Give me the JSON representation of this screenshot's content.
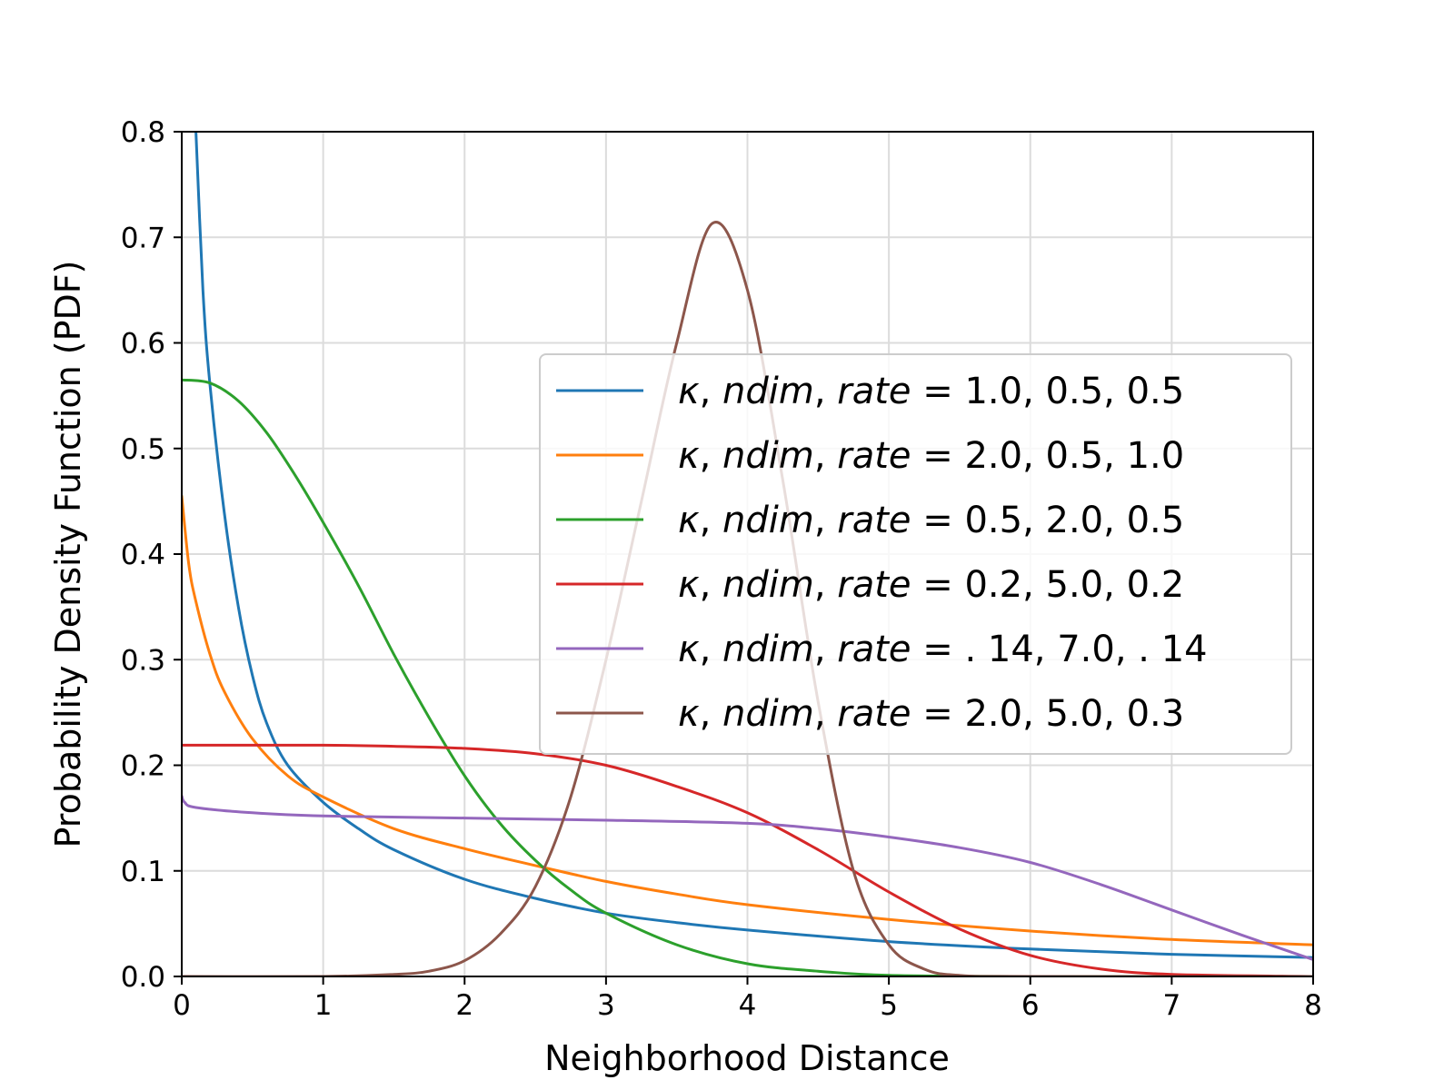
{
  "chart_data": {
    "type": "line",
    "title": "",
    "xlabel": "Neighborhood Distance",
    "ylabel": "Probability Density Function (PDF)",
    "xlim": [
      0,
      8
    ],
    "ylim": [
      0,
      0.8
    ],
    "x_ticks": [
      0,
      1,
      2,
      3,
      4,
      5,
      6,
      7,
      8
    ],
    "x_tick_labels": [
      "0",
      "1",
      "2",
      "3",
      "4",
      "5",
      "6",
      "7",
      "8"
    ],
    "y_ticks": [
      0.0,
      0.1,
      0.2,
      0.3,
      0.4,
      0.5,
      0.6,
      0.7,
      0.8
    ],
    "y_tick_labels": [
      "0.0",
      "0.1",
      "0.2",
      "0.3",
      "0.4",
      "0.5",
      "0.6",
      "0.7",
      "0.8"
    ],
    "grid": true,
    "legend_position": "center-right",
    "legend_prefix": [
      "κ",
      ", ",
      "ndim",
      ", ",
      "rate",
      " ="
    ],
    "series": [
      {
        "name": "κ, ndim, rate = 1.0, 0.5, 0.5",
        "params": "1.0, 0.5, 0.5",
        "color": "#1f77b4",
        "points": [
          [
            0.1,
            0.8
          ],
          [
            0.15,
            0.65
          ],
          [
            0.2,
            0.56
          ],
          [
            0.3,
            0.44
          ],
          [
            0.4,
            0.35
          ],
          [
            0.5,
            0.285
          ],
          [
            0.6,
            0.24
          ],
          [
            0.75,
            0.2
          ],
          [
            1.0,
            0.165
          ],
          [
            1.25,
            0.14
          ],
          [
            1.5,
            0.12
          ],
          [
            2.0,
            0.092
          ],
          [
            2.5,
            0.074
          ],
          [
            3.0,
            0.06
          ],
          [
            3.5,
            0.051
          ],
          [
            4.0,
            0.044
          ],
          [
            5.0,
            0.033
          ],
          [
            6.0,
            0.026
          ],
          [
            7.0,
            0.021
          ],
          [
            8.0,
            0.018
          ]
        ]
      },
      {
        "name": "κ, ndim, rate = 2.0, 0.5, 1.0",
        "params": "2.0, 0.5, 1.0",
        "color": "#ff7f0e",
        "points": [
          [
            0.0,
            0.455
          ],
          [
            0.05,
            0.39
          ],
          [
            0.1,
            0.355
          ],
          [
            0.2,
            0.305
          ],
          [
            0.3,
            0.27
          ],
          [
            0.5,
            0.225
          ],
          [
            0.75,
            0.19
          ],
          [
            1.0,
            0.17
          ],
          [
            1.5,
            0.14
          ],
          [
            2.0,
            0.121
          ],
          [
            2.5,
            0.105
          ],
          [
            3.0,
            0.09
          ],
          [
            3.5,
            0.078
          ],
          [
            4.0,
            0.068
          ],
          [
            5.0,
            0.054
          ],
          [
            6.0,
            0.043
          ],
          [
            7.0,
            0.035
          ],
          [
            8.0,
            0.03
          ]
        ]
      },
      {
        "name": "κ, ndim, rate = 0.5, 2.0, 0.5",
        "params": "0.5, 2.0, 0.5",
        "color": "#2ca02c",
        "points": [
          [
            0.0,
            0.565
          ],
          [
            0.2,
            0.562
          ],
          [
            0.4,
            0.545
          ],
          [
            0.6,
            0.515
          ],
          [
            0.8,
            0.475
          ],
          [
            1.0,
            0.43
          ],
          [
            1.25,
            0.37
          ],
          [
            1.5,
            0.305
          ],
          [
            1.75,
            0.245
          ],
          [
            2.0,
            0.19
          ],
          [
            2.25,
            0.145
          ],
          [
            2.5,
            0.11
          ],
          [
            2.75,
            0.082
          ],
          [
            3.0,
            0.06
          ],
          [
            3.5,
            0.03
          ],
          [
            4.0,
            0.012
          ],
          [
            4.5,
            0.005
          ],
          [
            5.0,
            0.001
          ],
          [
            6.0,
            0.0
          ],
          [
            8.0,
            0.0
          ]
        ]
      },
      {
        "name": "κ, ndim, rate = 0.2, 5.0, 0.2",
        "params": "0.2, 5.0, 0.2",
        "color": "#d62728",
        "points": [
          [
            0.0,
            0.219
          ],
          [
            1.0,
            0.219
          ],
          [
            1.5,
            0.218
          ],
          [
            2.0,
            0.216
          ],
          [
            2.5,
            0.211
          ],
          [
            3.0,
            0.2
          ],
          [
            3.5,
            0.18
          ],
          [
            4.0,
            0.155
          ],
          [
            4.5,
            0.12
          ],
          [
            5.0,
            0.08
          ],
          [
            5.5,
            0.045
          ],
          [
            6.0,
            0.02
          ],
          [
            6.5,
            0.007
          ],
          [
            7.0,
            0.002
          ],
          [
            8.0,
            0.0
          ]
        ]
      },
      {
        "name": "κ, ndim, rate = .14, 7.0, .14",
        "params": ". 14, 7.0, . 14",
        "color": "#9467bd",
        "points": [
          [
            0.0,
            0.171
          ],
          [
            0.02,
            0.165
          ],
          [
            0.1,
            0.16
          ],
          [
            0.5,
            0.155
          ],
          [
            1.0,
            0.152
          ],
          [
            2.0,
            0.15
          ],
          [
            3.0,
            0.148
          ],
          [
            4.0,
            0.145
          ],
          [
            4.5,
            0.14
          ],
          [
            5.0,
            0.132
          ],
          [
            5.5,
            0.122
          ],
          [
            6.0,
            0.108
          ],
          [
            6.5,
            0.087
          ],
          [
            7.0,
            0.063
          ],
          [
            7.5,
            0.039
          ],
          [
            8.0,
            0.016
          ]
        ]
      },
      {
        "name": "κ, ndim, rate = 2.0, 5.0, 0.3",
        "params": "2.0, 5.0, 0.3",
        "color": "#8c564b",
        "points": [
          [
            0.0,
            0.0
          ],
          [
            1.0,
            0.0
          ],
          [
            1.5,
            0.002
          ],
          [
            1.75,
            0.005
          ],
          [
            2.0,
            0.015
          ],
          [
            2.25,
            0.04
          ],
          [
            2.5,
            0.085
          ],
          [
            2.75,
            0.17
          ],
          [
            3.0,
            0.3
          ],
          [
            3.25,
            0.45
          ],
          [
            3.5,
            0.6
          ],
          [
            3.75,
            0.713
          ],
          [
            4.0,
            0.65
          ],
          [
            4.25,
            0.47
          ],
          [
            4.5,
            0.26
          ],
          [
            4.75,
            0.1
          ],
          [
            5.0,
            0.03
          ],
          [
            5.25,
            0.007
          ],
          [
            5.5,
            0.001
          ],
          [
            6.0,
            0.0
          ],
          [
            8.0,
            0.0
          ]
        ]
      }
    ]
  }
}
